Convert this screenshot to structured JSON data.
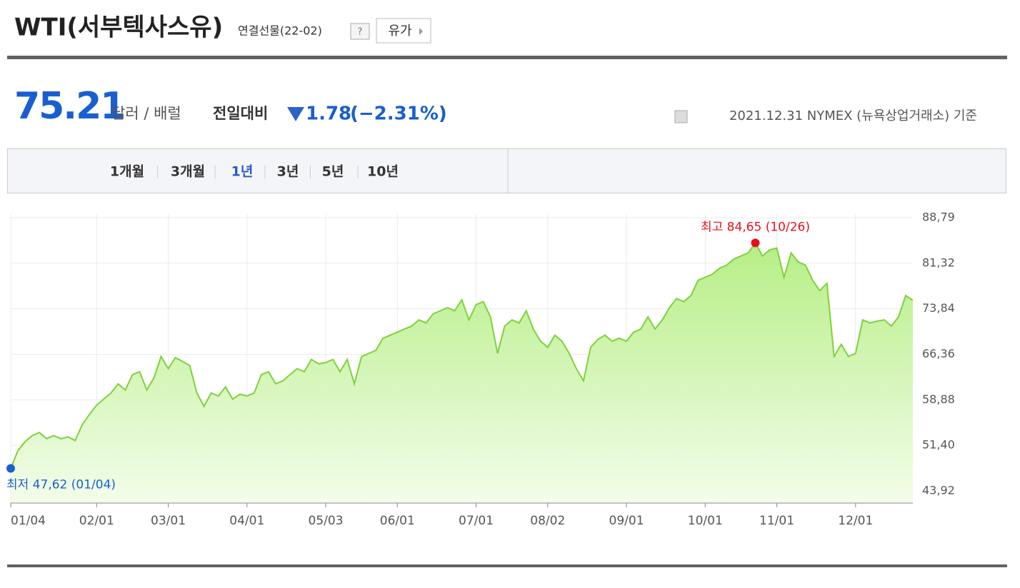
{
  "header": {
    "title": "WTI(서부텍사스유)",
    "subtitle": "연결선물(22-02)",
    "help": "?",
    "button": "유가"
  },
  "quote": {
    "price": "75.21",
    "unit": "달러 / 배럴",
    "change_label": "전일대비",
    "change": "1.78",
    "change_pct": "(−2.31%)",
    "note": "2021.12.31 NYMEX (뉴욕상업거래소) 기준"
  },
  "tabs": {
    "items": [
      "1개월",
      "3개월",
      "1년",
      "3년",
      "5년",
      "10년"
    ],
    "active": 2
  },
  "chart_data": {
    "type": "area",
    "categories": [
      "01/04",
      null,
      null,
      null,
      null,
      null,
      null,
      null,
      null,
      null,
      null,
      null,
      "02/01",
      null,
      null,
      null,
      null,
      null,
      null,
      null,
      null,
      null,
      "03/01",
      null,
      null,
      null,
      null,
      null,
      null,
      null,
      null,
      null,
      null,
      "04/01",
      null,
      null,
      null,
      null,
      null,
      null,
      null,
      null,
      null,
      null,
      "05/03",
      null,
      null,
      null,
      null,
      null,
      null,
      null,
      null,
      null,
      "06/01",
      null,
      null,
      null,
      null,
      null,
      null,
      null,
      null,
      null,
      null,
      "07/01",
      null,
      null,
      null,
      null,
      null,
      null,
      null,
      null,
      null,
      "08/02",
      null,
      null,
      null,
      null,
      null,
      null,
      null,
      null,
      null,
      null,
      "09/01",
      null,
      null,
      null,
      null,
      null,
      null,
      null,
      null,
      null,
      null,
      "10/01",
      null,
      null,
      null,
      null,
      null,
      null,
      null,
      null,
      null,
      "11/01",
      null,
      null,
      null,
      null,
      null,
      null,
      null,
      null,
      null,
      null,
      "12/01",
      null,
      null,
      null,
      null,
      null,
      null,
      null,
      null
    ],
    "series": [
      {
        "name": "WTI",
        "color": "#7ed23c",
        "values": [
          47.62,
          50.5,
          52.0,
          53.0,
          53.5,
          52.5,
          53.0,
          52.5,
          52.8,
          52.2,
          54.8,
          56.5,
          58.0,
          59.0,
          60.0,
          61.5,
          60.5,
          63.0,
          63.5,
          60.5,
          62.5,
          66.0,
          64.0,
          65.8,
          65.2,
          64.5,
          60.0,
          57.8,
          60.0,
          59.5,
          61.0,
          59.0,
          59.8,
          59.5,
          60.0,
          63.0,
          63.5,
          61.5,
          62.0,
          63.0,
          64.0,
          63.5,
          65.5,
          64.8,
          65.0,
          65.5,
          63.5,
          65.5,
          61.5,
          66.0,
          66.5,
          67.0,
          69.0,
          69.5,
          70.0,
          70.5,
          71.0,
          72.0,
          71.5,
          73.0,
          73.5,
          74.0,
          73.5,
          75.3,
          72.0,
          74.5,
          75.0,
          72.5,
          66.5,
          71.0,
          72.0,
          71.5,
          73.5,
          70.5,
          68.5,
          67.5,
          69.5,
          68.5,
          66.5,
          64.0,
          62.0,
          67.5,
          68.8,
          69.5,
          68.5,
          69.0,
          68.5,
          70.0,
          70.5,
          72.5,
          70.5,
          72.0,
          74.0,
          75.5,
          75.0,
          76.0,
          78.5,
          79.0,
          79.5,
          80.5,
          81.0,
          82.0,
          82.5,
          83.0,
          84.65,
          82.5,
          83.5,
          83.8,
          79.0,
          83.0,
          81.5,
          81.0,
          78.5,
          76.8,
          78.0,
          66.0,
          68.0,
          66.0,
          66.5,
          72.0,
          71.5,
          71.8,
          72.0,
          71.0,
          72.5,
          76.0,
          75.21
        ]
      }
    ],
    "ylim": [
      43.92,
      88.79
    ],
    "yticks": [
      {
        "value": 43.92,
        "label": "43,92"
      },
      {
        "value": 51.4,
        "label": "51,40"
      },
      {
        "value": 58.88,
        "label": "58,88"
      },
      {
        "value": 66.36,
        "label": "66,36"
      },
      {
        "value": 73.84,
        "label": "73,84"
      },
      {
        "value": 81.32,
        "label": "81,32"
      },
      {
        "value": 88.79,
        "label": "88,79"
      }
    ],
    "grid": true,
    "annotations": {
      "high": "최고 84,65 (10/26)",
      "low": "최저 47,62 (01/04)"
    }
  }
}
